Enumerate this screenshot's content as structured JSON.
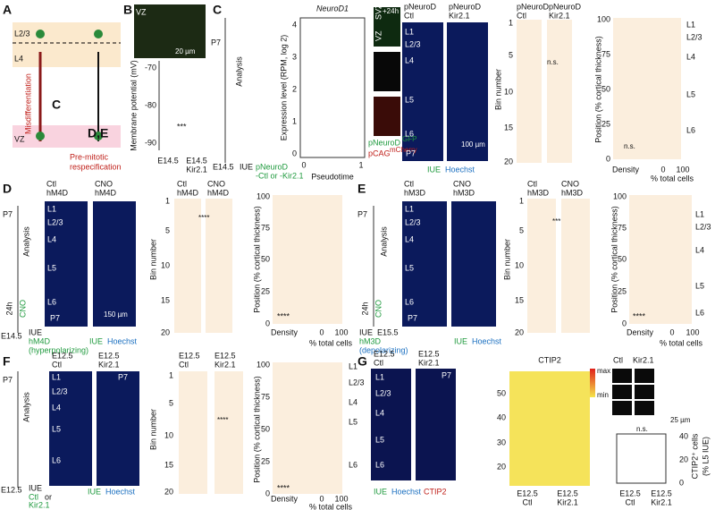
{
  "panels": [
    {
      "texts": [
        "A",
        "L2/3",
        "L4",
        "VZ",
        "C",
        "D,E",
        "Misdifferentiation",
        "Pre-mitotic",
        "respecification"
      ]
    },
    {
      "texts": [
        "B",
        "VZ",
        "20 µm",
        "Membrane potential (mV)",
        "-70",
        "-80",
        "-90",
        "***",
        "E14.5",
        "E14.5",
        "Kir2.1"
      ]
    },
    {
      "texts": [
        "C",
        "P7",
        "Analysis",
        "E14.5",
        "IUE",
        "pNeuroD",
        "-Ctl or -Kir2.1",
        "NeuroD1",
        "Expression level (RPM, log 2)",
        "0",
        "1",
        "2",
        "3",
        "4",
        "Pseudotime",
        "0",
        "1",
        "VZ",
        "SVZ",
        "+24h",
        "pNeuroD",
        "GFP",
        "pCAG",
        "mCherry",
        "pNeuroD",
        "Ctl",
        "pNeuroD",
        "Kir2.1",
        "L1",
        "L2/3",
        "L4",
        "L5",
        "L6",
        "100 µm",
        "P7",
        "IUE",
        "Hoechst",
        "pNeuroD",
        "Ctl",
        "pNeuroD",
        "Kir2.1",
        "Bin number",
        "1",
        "5",
        "10",
        "15",
        "20",
        "n.s.",
        "Position (% cortical thickness)",
        "100",
        "75",
        "50",
        "25",
        "0",
        "n.s.",
        "Density",
        "0",
        "100",
        "% total cells",
        "L1",
        "L2/3",
        "L4",
        "L5",
        "L6"
      ]
    },
    {
      "texts": [
        "D",
        "P7",
        "Analysis",
        "24h",
        "CNO",
        "E14.5",
        "IUE",
        "hM4D",
        "(hyperpolarizing)",
        "Ctl",
        "hM4D",
        "CNO",
        "hM4D",
        "L1",
        "L2/3",
        "L4",
        "L5",
        "L6",
        "P7",
        "150 µm",
        "IUE",
        "Hoechst",
        "Ctl",
        "hM4D",
        "CNO",
        "hM4D",
        "Bin number",
        "1",
        "5",
        "10",
        "15",
        "20",
        "****",
        "Position (% cortical thickness)",
        "100",
        "75",
        "50",
        "25",
        "0",
        "****",
        "Density",
        "0",
        "100",
        "% total cells"
      ]
    },
    {
      "texts": [
        "E",
        "P7",
        "Analysis",
        "24h",
        "CNO",
        "IUE",
        "E15.5",
        "hM3D",
        "(depolarizing)",
        "Ctl",
        "hM3D",
        "CNO",
        "hM3D",
        "L1",
        "L2/3",
        "L4",
        "L5",
        "L6",
        "P7",
        "IUE",
        "Hoechst",
        "Ctl",
        "hM3D",
        "CNO",
        "hM3D",
        "Bin number",
        "1",
        "5",
        "10",
        "15",
        "20",
        "***",
        "Position (% cortical thickness)",
        "100",
        "75",
        "50",
        "25",
        "0",
        "****",
        "Density",
        "0",
        "100",
        "% total cells",
        "L1",
        "L2/3",
        "L4",
        "L5",
        "L6"
      ]
    },
    {
      "texts": [
        "F",
        "P7",
        "Analysis",
        "E12.5",
        "IUE",
        "Ctl",
        "or",
        "Kir2.1",
        "E12.5",
        "Ctl",
        "E12.5",
        "Kir2.1",
        "L1",
        "L2/3",
        "L4",
        "L5",
        "L6",
        "P7",
        "IUE",
        "Hoechst",
        "E12.5",
        "Ctl",
        "E12.5",
        "Kir2.1",
        "Bin number",
        "1",
        "5",
        "10",
        "15",
        "20",
        "****",
        "Position (% cortical thickness)",
        "100",
        "75",
        "50",
        "25",
        "0",
        "****",
        "Density",
        "0",
        "100",
        "% total cells",
        "L1",
        "L2/3",
        "L4",
        "L5",
        "L6"
      ]
    },
    {
      "texts": [
        "G",
        "E12.5",
        "Ctl",
        "E12.5",
        "Kir2.1",
        "P7",
        "L1",
        "L2/3",
        "L4",
        "L5",
        "L6",
        "IUE",
        "Hoechst",
        "CTIP2",
        "CTIP2",
        "50",
        "40",
        "30",
        "20",
        "max",
        "min",
        "E12.5",
        "Ctl",
        "E12.5",
        "Kir2.1",
        "Ctl",
        "Kir2.1",
        "25 µm",
        "n.s.",
        "CTIP2⁺ cells",
        "(% L5 IUE)",
        "40",
        "20",
        "0",
        "E12.5",
        "Ctl",
        "E12.5",
        "Kir2.1"
      ]
    }
  ]
}
